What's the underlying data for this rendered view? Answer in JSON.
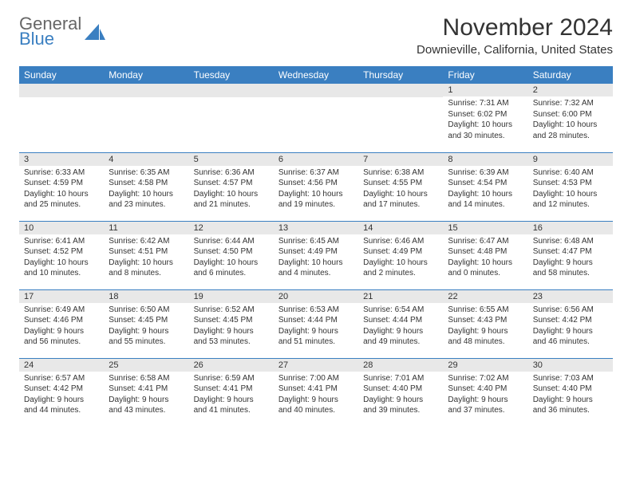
{
  "logo": {
    "line1": "General",
    "line2": "Blue",
    "shape_color": "#3a7fc1"
  },
  "title": "November 2024",
  "location": "Downieville, California, United States",
  "colors": {
    "header_bg": "#3a7fc1",
    "header_fg": "#ffffff",
    "daynum_bg": "#e8e8e8",
    "border": "#3a7fc1",
    "text": "#333333"
  },
  "day_headers": [
    "Sunday",
    "Monday",
    "Tuesday",
    "Wednesday",
    "Thursday",
    "Friday",
    "Saturday"
  ],
  "weeks": [
    [
      {
        "n": "",
        "sr": "",
        "ss": "",
        "dl": ""
      },
      {
        "n": "",
        "sr": "",
        "ss": "",
        "dl": ""
      },
      {
        "n": "",
        "sr": "",
        "ss": "",
        "dl": ""
      },
      {
        "n": "",
        "sr": "",
        "ss": "",
        "dl": ""
      },
      {
        "n": "",
        "sr": "",
        "ss": "",
        "dl": ""
      },
      {
        "n": "1",
        "sr": "Sunrise: 7:31 AM",
        "ss": "Sunset: 6:02 PM",
        "dl": "Daylight: 10 hours and 30 minutes."
      },
      {
        "n": "2",
        "sr": "Sunrise: 7:32 AM",
        "ss": "Sunset: 6:00 PM",
        "dl": "Daylight: 10 hours and 28 minutes."
      }
    ],
    [
      {
        "n": "3",
        "sr": "Sunrise: 6:33 AM",
        "ss": "Sunset: 4:59 PM",
        "dl": "Daylight: 10 hours and 25 minutes."
      },
      {
        "n": "4",
        "sr": "Sunrise: 6:35 AM",
        "ss": "Sunset: 4:58 PM",
        "dl": "Daylight: 10 hours and 23 minutes."
      },
      {
        "n": "5",
        "sr": "Sunrise: 6:36 AM",
        "ss": "Sunset: 4:57 PM",
        "dl": "Daylight: 10 hours and 21 minutes."
      },
      {
        "n": "6",
        "sr": "Sunrise: 6:37 AM",
        "ss": "Sunset: 4:56 PM",
        "dl": "Daylight: 10 hours and 19 minutes."
      },
      {
        "n": "7",
        "sr": "Sunrise: 6:38 AM",
        "ss": "Sunset: 4:55 PM",
        "dl": "Daylight: 10 hours and 17 minutes."
      },
      {
        "n": "8",
        "sr": "Sunrise: 6:39 AM",
        "ss": "Sunset: 4:54 PM",
        "dl": "Daylight: 10 hours and 14 minutes."
      },
      {
        "n": "9",
        "sr": "Sunrise: 6:40 AM",
        "ss": "Sunset: 4:53 PM",
        "dl": "Daylight: 10 hours and 12 minutes."
      }
    ],
    [
      {
        "n": "10",
        "sr": "Sunrise: 6:41 AM",
        "ss": "Sunset: 4:52 PM",
        "dl": "Daylight: 10 hours and 10 minutes."
      },
      {
        "n": "11",
        "sr": "Sunrise: 6:42 AM",
        "ss": "Sunset: 4:51 PM",
        "dl": "Daylight: 10 hours and 8 minutes."
      },
      {
        "n": "12",
        "sr": "Sunrise: 6:44 AM",
        "ss": "Sunset: 4:50 PM",
        "dl": "Daylight: 10 hours and 6 minutes."
      },
      {
        "n": "13",
        "sr": "Sunrise: 6:45 AM",
        "ss": "Sunset: 4:49 PM",
        "dl": "Daylight: 10 hours and 4 minutes."
      },
      {
        "n": "14",
        "sr": "Sunrise: 6:46 AM",
        "ss": "Sunset: 4:49 PM",
        "dl": "Daylight: 10 hours and 2 minutes."
      },
      {
        "n": "15",
        "sr": "Sunrise: 6:47 AM",
        "ss": "Sunset: 4:48 PM",
        "dl": "Daylight: 10 hours and 0 minutes."
      },
      {
        "n": "16",
        "sr": "Sunrise: 6:48 AM",
        "ss": "Sunset: 4:47 PM",
        "dl": "Daylight: 9 hours and 58 minutes."
      }
    ],
    [
      {
        "n": "17",
        "sr": "Sunrise: 6:49 AM",
        "ss": "Sunset: 4:46 PM",
        "dl": "Daylight: 9 hours and 56 minutes."
      },
      {
        "n": "18",
        "sr": "Sunrise: 6:50 AM",
        "ss": "Sunset: 4:45 PM",
        "dl": "Daylight: 9 hours and 55 minutes."
      },
      {
        "n": "19",
        "sr": "Sunrise: 6:52 AM",
        "ss": "Sunset: 4:45 PM",
        "dl": "Daylight: 9 hours and 53 minutes."
      },
      {
        "n": "20",
        "sr": "Sunrise: 6:53 AM",
        "ss": "Sunset: 4:44 PM",
        "dl": "Daylight: 9 hours and 51 minutes."
      },
      {
        "n": "21",
        "sr": "Sunrise: 6:54 AM",
        "ss": "Sunset: 4:44 PM",
        "dl": "Daylight: 9 hours and 49 minutes."
      },
      {
        "n": "22",
        "sr": "Sunrise: 6:55 AM",
        "ss": "Sunset: 4:43 PM",
        "dl": "Daylight: 9 hours and 48 minutes."
      },
      {
        "n": "23",
        "sr": "Sunrise: 6:56 AM",
        "ss": "Sunset: 4:42 PM",
        "dl": "Daylight: 9 hours and 46 minutes."
      }
    ],
    [
      {
        "n": "24",
        "sr": "Sunrise: 6:57 AM",
        "ss": "Sunset: 4:42 PM",
        "dl": "Daylight: 9 hours and 44 minutes."
      },
      {
        "n": "25",
        "sr": "Sunrise: 6:58 AM",
        "ss": "Sunset: 4:41 PM",
        "dl": "Daylight: 9 hours and 43 minutes."
      },
      {
        "n": "26",
        "sr": "Sunrise: 6:59 AM",
        "ss": "Sunset: 4:41 PM",
        "dl": "Daylight: 9 hours and 41 minutes."
      },
      {
        "n": "27",
        "sr": "Sunrise: 7:00 AM",
        "ss": "Sunset: 4:41 PM",
        "dl": "Daylight: 9 hours and 40 minutes."
      },
      {
        "n": "28",
        "sr": "Sunrise: 7:01 AM",
        "ss": "Sunset: 4:40 PM",
        "dl": "Daylight: 9 hours and 39 minutes."
      },
      {
        "n": "29",
        "sr": "Sunrise: 7:02 AM",
        "ss": "Sunset: 4:40 PM",
        "dl": "Daylight: 9 hours and 37 minutes."
      },
      {
        "n": "30",
        "sr": "Sunrise: 7:03 AM",
        "ss": "Sunset: 4:40 PM",
        "dl": "Daylight: 9 hours and 36 minutes."
      }
    ]
  ]
}
